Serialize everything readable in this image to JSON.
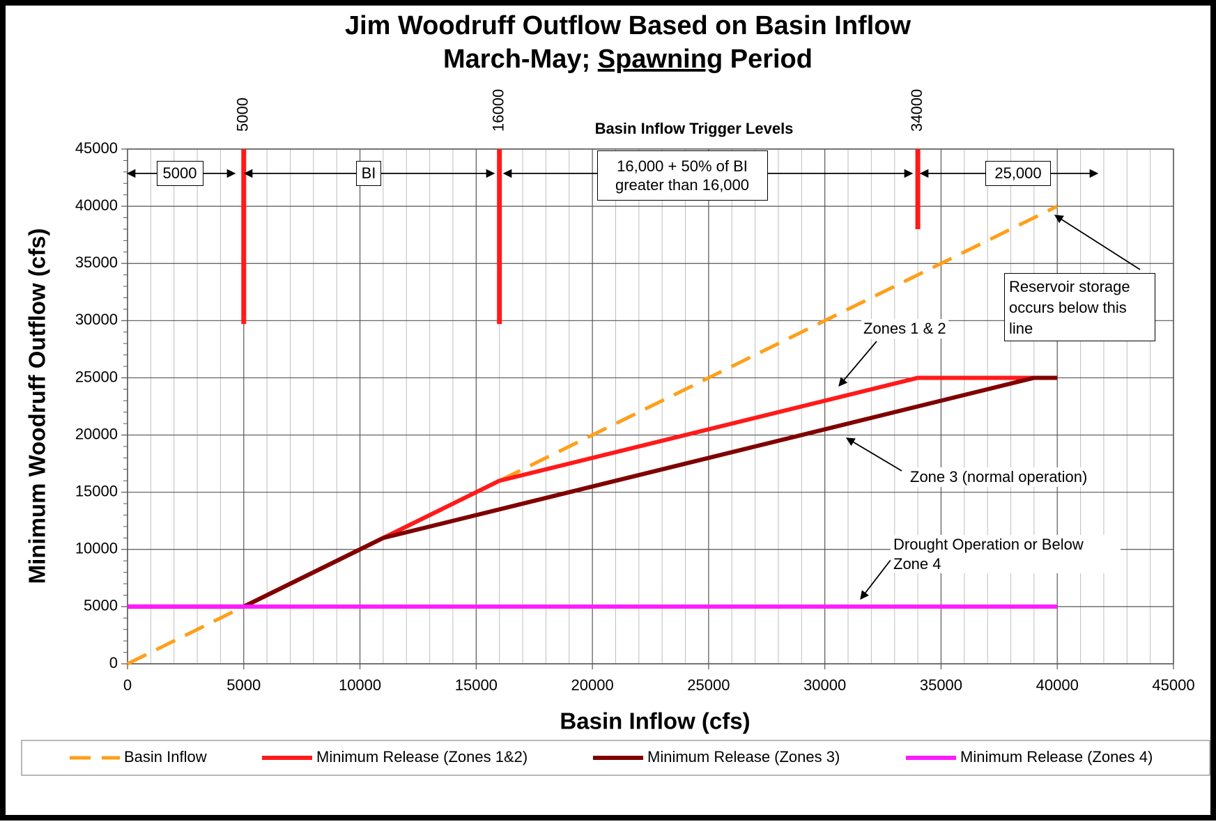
{
  "chart_data": {
    "type": "line",
    "title": "Jim Woodruff Outflow Based on Basin Inflow",
    "subtitle": [
      "March-May; ",
      "Spawning",
      " Period"
    ],
    "x_label": "Basin Inflow (cfs)",
    "y_label": "Minimum Woodruff Outflow (cfs)",
    "xlim": [
      0,
      45000
    ],
    "ylim": [
      0,
      45000
    ],
    "xticks": [
      0,
      5000,
      10000,
      15000,
      20000,
      25000,
      30000,
      35000,
      40000,
      45000
    ],
    "yticks": [
      0,
      5000,
      10000,
      15000,
      20000,
      25000,
      30000,
      35000,
      40000,
      45000
    ],
    "minor_step": 1000,
    "grid": true,
    "legend": "bottom",
    "series": [
      {
        "name": "Basin Inflow",
        "color": "#ff9f1a",
        "dashed": true,
        "x": [
          0,
          40000
        ],
        "values": [
          0,
          40000
        ]
      },
      {
        "name": "Minimum Release (Zones 1&2)",
        "color": "#ff1a1a",
        "x": [
          0,
          5000,
          11000,
          16000,
          34000,
          40000
        ],
        "values": [
          5000,
          5000,
          11000,
          16000,
          25000,
          25000
        ]
      },
      {
        "name": "Minimum Release (Zones 3)",
        "color": "#800000",
        "x": [
          0,
          5000,
          11000,
          39000,
          40000
        ],
        "values": [
          5000,
          5000,
          11000,
          25000,
          25000
        ]
      },
      {
        "name": "Minimum Release (Zones 4)",
        "color": "#ff1aff",
        "x": [
          0,
          40000
        ],
        "values": [
          5000,
          5000
        ]
      }
    ],
    "triggers": {
      "title": "Basin Inflow Trigger Levels",
      "color": "#ff1a1a",
      "lines": [
        {
          "x": 5000,
          "y_end": 29700
        },
        {
          "x": 16000,
          "y_end": 29700
        },
        {
          "x": 34000,
          "y_end": 38000
        }
      ]
    },
    "zone_annotations": [
      "5000",
      "BI",
      "16,000 + 50% of BI greater than 16,000",
      "25,000"
    ],
    "annotations": [
      "Reservoir storage occurs below this line",
      "Zones 1 & 2",
      "Zone 3 (normal operation)",
      "Drought Operation or Below Zone 4"
    ]
  }
}
